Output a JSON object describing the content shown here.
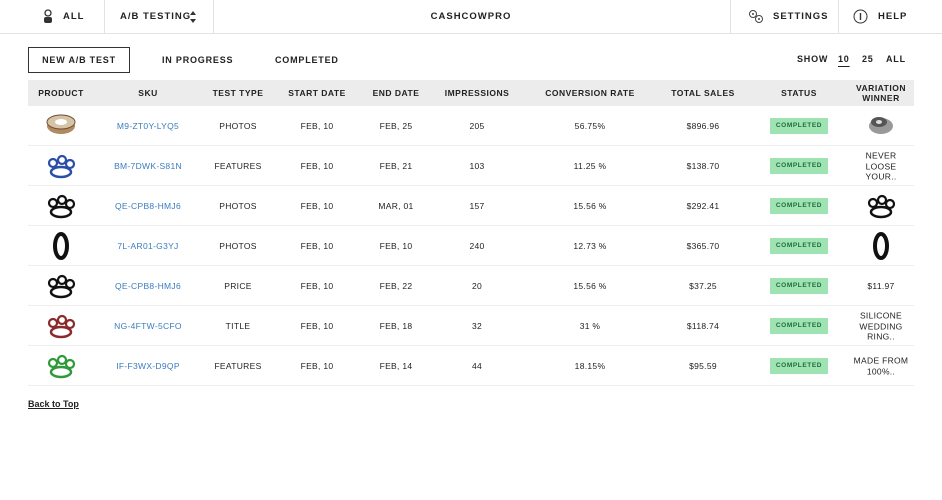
{
  "nav": {
    "all": "ALL",
    "section": "A/B TESTING",
    "brand": "CASHCOWPRO",
    "settings": "SETTINGS",
    "help": "HELP"
  },
  "tabs": [
    "NEW A/B TEST",
    "IN PROGRESS",
    "COMPLETED"
  ],
  "show": {
    "label": "SHOW",
    "options": [
      "10",
      "25",
      "ALL"
    ]
  },
  "table": {
    "headers": [
      "PRODUCT",
      "SKU",
      "TEST TYPE",
      "START DATE",
      "END DATE",
      "IMPRESSIONS",
      "CONVERSION RATE",
      "TOTAL SALES",
      "STATUS",
      "VARIATION WINNER"
    ],
    "rows": [
      {
        "sku": "M9-ZT0Y-LYQ5",
        "test_type": "PHOTOS",
        "start_date": "FEB, 10",
        "end_date": "FEB, 25",
        "impressions": 205,
        "conversion_rate": "56.75%",
        "total_sales": "$896.96",
        "status": "COMPLETED"
      },
      {
        "sku": "BM-7DWK-S81N",
        "test_type": "FEATURES",
        "start_date": "FEB, 10",
        "end_date": "FEB, 21",
        "impressions": 103,
        "conversion_rate": "11.25 %",
        "total_sales": "$138.70",
        "status": "COMPLETED",
        "winner": "NEVER LOOSE YOUR.."
      },
      {
        "sku": "QE-CPB8-HMJ6",
        "test_type": "PHOTOS",
        "start_date": "FEB, 10",
        "end_date": "MAR, 01",
        "impressions": 157,
        "conversion_rate": "15.56 %",
        "total_sales": "$292.41",
        "status": "COMPLETED"
      },
      {
        "sku": "7L-AR01-G3YJ",
        "test_type": "PHOTOS",
        "start_date": "FEB, 10",
        "end_date": "FEB, 10",
        "impressions": 240,
        "conversion_rate": "12.73 %",
        "total_sales": "$365.70",
        "status": "COMPLETED"
      },
      {
        "sku": "QE-CPB8-HMJ6",
        "test_type": "PRICE",
        "start_date": "FEB, 10",
        "end_date": "FEB, 22",
        "impressions": 20,
        "conversion_rate": "15.56 %",
        "total_sales": "$37.25",
        "status": "COMPLETED",
        "winner": "$11.97"
      },
      {
        "sku": "NG-4FTW-5CFO",
        "test_type": "TITLE",
        "start_date": "FEB, 10",
        "end_date": "FEB, 18",
        "impressions": 32,
        "conversion_rate": "31 %",
        "total_sales": "$118.74",
        "status": "COMPLETED",
        "winner": "SILICONE WEDDING RING.."
      },
      {
        "sku": "IF-F3WX-D9QP",
        "test_type": "FEATURES",
        "start_date": "FEB, 10",
        "end_date": "FEB, 14",
        "impressions": 44,
        "conversion_rate": "18.15%",
        "total_sales": "$95.59",
        "status": "COMPLETED",
        "winner": "MADE FROM 100%.."
      }
    ]
  },
  "back_to_top": "Back to Top"
}
